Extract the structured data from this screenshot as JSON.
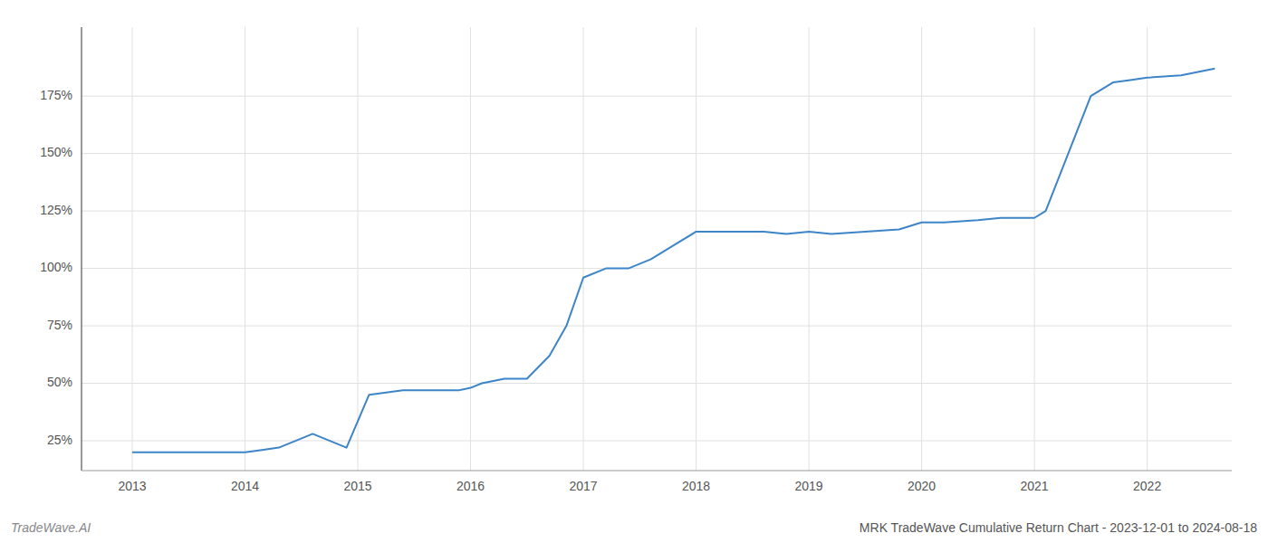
{
  "chart_data": {
    "type": "line",
    "title": "MRK TradeWave Cumulative Return Chart - 2023-12-01 to 2024-08-18",
    "annotations": [
      "TradeWave.AI"
    ],
    "x": [
      2013.0,
      2013.3,
      2013.6,
      2013.9,
      2014.0,
      2014.15,
      2014.3,
      2014.6,
      2014.9,
      2015.1,
      2015.4,
      2015.7,
      2015.9,
      2016.0,
      2016.1,
      2016.3,
      2016.5,
      2016.7,
      2016.85,
      2017.0,
      2017.2,
      2017.4,
      2017.6,
      2017.8,
      2018.0,
      2018.2,
      2018.4,
      2018.6,
      2018.8,
      2019.0,
      2019.2,
      2019.5,
      2019.8,
      2020.0,
      2020.2,
      2020.5,
      2020.7,
      2020.9,
      2021.0,
      2021.1,
      2021.3,
      2021.5,
      2021.7,
      2021.85,
      2022.0,
      2022.3,
      2022.6
    ],
    "values": [
      20,
      20,
      20,
      20,
      20,
      21,
      22,
      28,
      22,
      45,
      47,
      47,
      47,
      48,
      50,
      52,
      52,
      62,
      75,
      96,
      100,
      100,
      104,
      110,
      116,
      116,
      116,
      116,
      115,
      116,
      115,
      116,
      117,
      120,
      120,
      121,
      122,
      122,
      122,
      125,
      150,
      175,
      181,
      182,
      183,
      184,
      187
    ],
    "color": "#3d85c8",
    "xlim": [
      2012.55,
      2022.75
    ],
    "ylim": [
      12,
      205
    ],
    "xticks": [
      2013,
      2014,
      2015,
      2016,
      2017,
      2018,
      2019,
      2020,
      2021,
      2022
    ],
    "yticks": [
      {
        "value": 25,
        "label": "25%"
      },
      {
        "value": 50,
        "label": "50%"
      },
      {
        "value": 75,
        "label": "75%"
      },
      {
        "value": 100,
        "label": "100%"
      },
      {
        "value": 125,
        "label": "125%"
      },
      {
        "value": 150,
        "label": "150%"
      },
      {
        "value": 175,
        "label": "175%"
      }
    ],
    "grid": true
  }
}
